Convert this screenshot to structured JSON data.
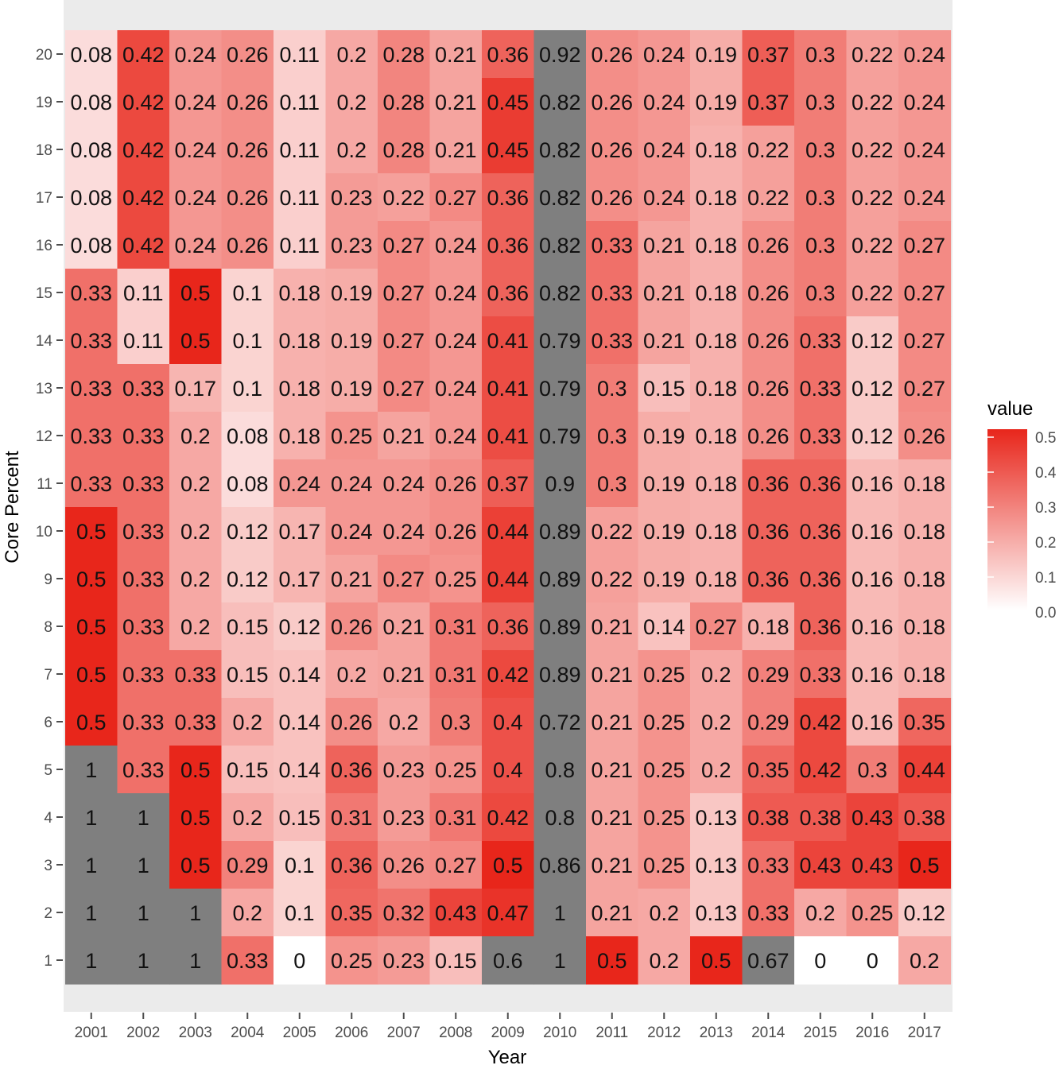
{
  "chart_data": {
    "type": "heatmap",
    "title": "",
    "xlabel": "Year",
    "ylabel": "Core Percent",
    "x": [
      "2001",
      "2002",
      "2003",
      "2004",
      "2005",
      "2006",
      "2007",
      "2008",
      "2009",
      "2010",
      "2011",
      "2012",
      "2013",
      "2014",
      "2015",
      "2016",
      "2017"
    ],
    "y": [
      "20",
      "19",
      "18",
      "17",
      "16",
      "15",
      "14",
      "13",
      "12",
      "11",
      "10",
      "9",
      "8",
      "7",
      "6",
      "5",
      "4",
      "3",
      "2",
      "1"
    ],
    "values": [
      [
        0.08,
        0.42,
        0.24,
        0.26,
        0.11,
        0.2,
        0.28,
        0.21,
        0.36,
        0.92,
        0.26,
        0.24,
        0.19,
        0.37,
        0.3,
        0.22,
        0.24
      ],
      [
        0.08,
        0.42,
        0.24,
        0.26,
        0.11,
        0.2,
        0.28,
        0.21,
        0.45,
        0.82,
        0.26,
        0.24,
        0.19,
        0.37,
        0.3,
        0.22,
        0.24
      ],
      [
        0.08,
        0.42,
        0.24,
        0.26,
        0.11,
        0.2,
        0.28,
        0.21,
        0.45,
        0.82,
        0.26,
        0.24,
        0.18,
        0.22,
        0.3,
        0.22,
        0.24
      ],
      [
        0.08,
        0.42,
        0.24,
        0.26,
        0.11,
        0.23,
        0.22,
        0.27,
        0.36,
        0.82,
        0.26,
        0.24,
        0.18,
        0.22,
        0.3,
        0.22,
        0.24
      ],
      [
        0.08,
        0.42,
        0.24,
        0.26,
        0.11,
        0.23,
        0.27,
        0.24,
        0.36,
        0.82,
        0.33,
        0.21,
        0.18,
        0.26,
        0.3,
        0.22,
        0.27
      ],
      [
        0.33,
        0.11,
        0.5,
        0.1,
        0.18,
        0.19,
        0.27,
        0.24,
        0.36,
        0.82,
        0.33,
        0.21,
        0.18,
        0.26,
        0.3,
        0.22,
        0.27
      ],
      [
        0.33,
        0.11,
        0.5,
        0.1,
        0.18,
        0.19,
        0.27,
        0.24,
        0.41,
        0.79,
        0.33,
        0.21,
        0.18,
        0.26,
        0.33,
        0.12,
        0.27
      ],
      [
        0.33,
        0.33,
        0.17,
        0.1,
        0.18,
        0.19,
        0.27,
        0.24,
        0.41,
        0.79,
        0.3,
        0.15,
        0.18,
        0.26,
        0.33,
        0.12,
        0.27
      ],
      [
        0.33,
        0.33,
        0.2,
        0.08,
        0.18,
        0.25,
        0.21,
        0.24,
        0.41,
        0.79,
        0.3,
        0.19,
        0.18,
        0.26,
        0.33,
        0.12,
        0.26
      ],
      [
        0.33,
        0.33,
        0.2,
        0.08,
        0.24,
        0.24,
        0.24,
        0.26,
        0.37,
        0.9,
        0.3,
        0.19,
        0.18,
        0.36,
        0.36,
        0.16,
        0.18
      ],
      [
        0.5,
        0.33,
        0.2,
        0.12,
        0.17,
        0.24,
        0.24,
        0.26,
        0.44,
        0.89,
        0.22,
        0.19,
        0.18,
        0.36,
        0.36,
        0.16,
        0.18
      ],
      [
        0.5,
        0.33,
        0.2,
        0.12,
        0.17,
        0.21,
        0.27,
        0.25,
        0.44,
        0.89,
        0.22,
        0.19,
        0.18,
        0.36,
        0.36,
        0.16,
        0.18
      ],
      [
        0.5,
        0.33,
        0.2,
        0.15,
        0.12,
        0.26,
        0.21,
        0.31,
        0.36,
        0.89,
        0.21,
        0.14,
        0.27,
        0.18,
        0.36,
        0.16,
        0.18
      ],
      [
        0.5,
        0.33,
        0.33,
        0.15,
        0.14,
        0.2,
        0.21,
        0.31,
        0.42,
        0.89,
        0.21,
        0.25,
        0.2,
        0.29,
        0.33,
        0.16,
        0.18
      ],
      [
        0.5,
        0.33,
        0.33,
        0.2,
        0.14,
        0.26,
        0.2,
        0.3,
        0.4,
        0.72,
        0.21,
        0.25,
        0.2,
        0.29,
        0.42,
        0.16,
        0.35
      ],
      [
        1,
        0.33,
        0.5,
        0.15,
        0.14,
        0.36,
        0.23,
        0.25,
        0.4,
        0.8,
        0.21,
        0.25,
        0.2,
        0.35,
        0.42,
        0.3,
        0.44
      ],
      [
        1,
        1,
        0.5,
        0.2,
        0.15,
        0.31,
        0.23,
        0.31,
        0.42,
        0.8,
        0.21,
        0.25,
        0.13,
        0.38,
        0.38,
        0.43,
        0.38
      ],
      [
        1,
        1,
        0.5,
        0.29,
        0.1,
        0.36,
        0.26,
        0.27,
        0.5,
        0.86,
        0.21,
        0.25,
        0.13,
        0.33,
        0.43,
        0.43,
        0.5
      ],
      [
        1,
        1,
        1,
        0.2,
        0.1,
        0.35,
        0.32,
        0.43,
        0.47,
        1,
        0.21,
        0.2,
        0.13,
        0.33,
        0.2,
        0.25,
        0.12
      ],
      [
        1,
        1,
        1,
        0.33,
        0,
        0.25,
        0.23,
        0.15,
        0.6,
        1,
        0.5,
        0.2,
        0.5,
        0.67,
        0,
        0,
        0.2
      ]
    ],
    "color_scale": {
      "low": "#ffffff",
      "high": "#e8261b",
      "out_of_range": "#7f7f7f",
      "range": [
        0,
        0.5
      ]
    },
    "legend": {
      "title": "value",
      "ticks": [
        "0.5",
        "0.4",
        "0.3",
        "0.2",
        "0.1",
        "0.0"
      ],
      "placement": "right"
    },
    "panel_background": "#ebebeb",
    "grid": true
  }
}
